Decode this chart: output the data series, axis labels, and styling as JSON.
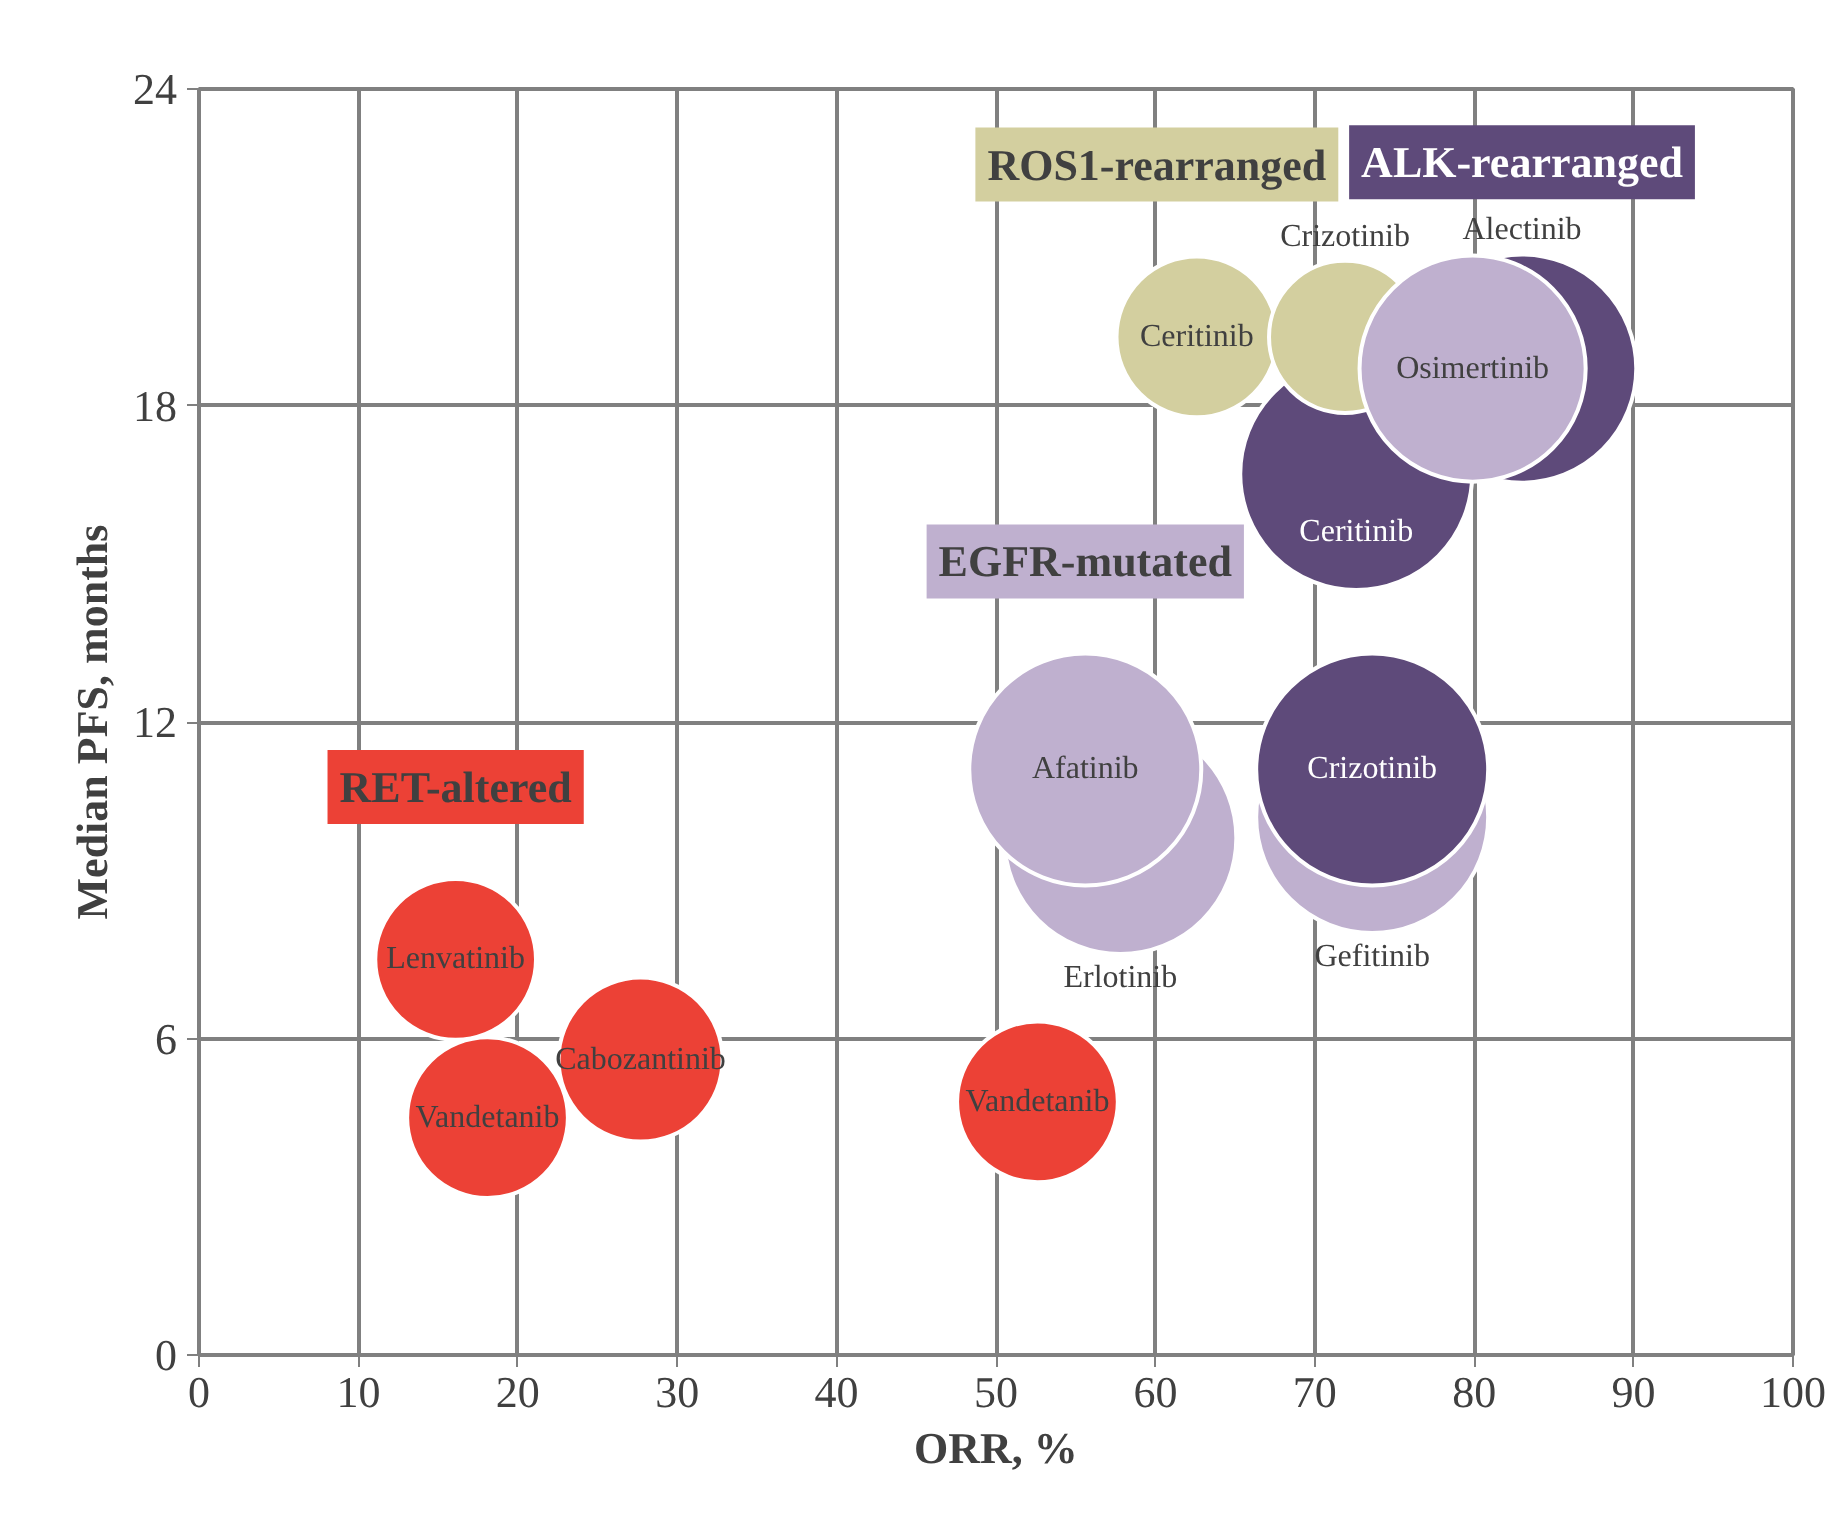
{
  "chart_data": {
    "type": "bubble",
    "xlabel": "ORR, %",
    "ylabel": "Median PFS, months",
    "xlim": [
      0,
      100
    ],
    "xticks": [
      0,
      10,
      20,
      30,
      40,
      50,
      60,
      70,
      80,
      90,
      100
    ],
    "ylim": [
      0,
      24
    ],
    "yticks": [
      0,
      6,
      12,
      18,
      24
    ],
    "grid": true,
    "series": [
      {
        "color": "#bfb0cf",
        "x": [
          57.8,
          73.6
        ],
        "values": [
          9.8,
          10.2
        ],
        "sizes": [
          1,
          1
        ],
        "value_labels": [
          "Erlotinib",
          "Gefitinib"
        ]
      },
      {
        "name": "ALK-rearranged",
        "color": "#5e4a7a",
        "x": [
          72.6,
          83,
          73.6
        ],
        "values": [
          16.7,
          18.7,
          11.1
        ],
        "sizes": [
          1,
          0.97,
          1
        ],
        "value_labels": [
          "Ceritinib",
          "Alectinib",
          "Crizotinib"
        ]
      },
      {
        "name": "ROS1-rearranged",
        "color": "#d3cf9f",
        "x": [
          62.6,
          71.9
        ],
        "values": [
          19.3,
          19.3
        ],
        "sizes": [
          0.48,
          0.43
        ],
        "value_labels": [
          "Ceritinib",
          "Crizotinib"
        ]
      },
      {
        "name": "EGFR-mutated",
        "color": "#bfb0cf",
        "x": [
          55.6,
          79.9
        ],
        "values": [
          11.1,
          18.7
        ],
        "sizes": [
          1,
          0.95
        ],
        "value_labels": [
          "Afatinib",
          "Osimertinib"
        ]
      },
      {
        "name": "RET-altered",
        "color": "#ec4136",
        "x": [
          16.1,
          18.1,
          27.7,
          52.6
        ],
        "values": [
          7.5,
          4.5,
          5.6,
          4.8
        ],
        "sizes": [
          0.48,
          0.48,
          0.5,
          0.48
        ],
        "value_labels": [
          "Lenvatinib",
          "Vandetanib",
          "Cabozantinib",
          "Vandetanib"
        ]
      }
    ]
  }
}
